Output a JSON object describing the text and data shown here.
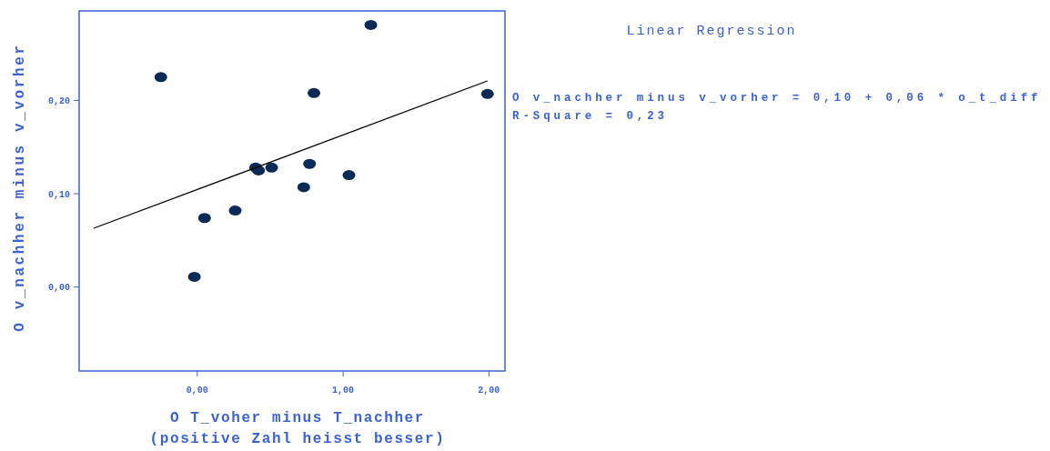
{
  "chart_data": {
    "type": "scatter",
    "title": "Linear Regression",
    "xlabel": "O T_voher minus T_nachher\n(positive Zahl heisst besser)",
    "ylabel": "O v_nachher minus v_vorher",
    "annotations": [
      "O v_nachher minus v_vorher = 0,10 + 0,06 * o_t_diff",
      "R-Square = 0,23"
    ],
    "xlim": [
      -0.81,
      2.11
    ],
    "ylim": [
      -0.09,
      0.296
    ],
    "xticks": [
      {
        "value": 0,
        "label": "0,00"
      },
      {
        "value": 1,
        "label": "1,00"
      },
      {
        "value": 2,
        "label": "2,00"
      }
    ],
    "yticks": [
      {
        "value": 0,
        "label": "0,00"
      },
      {
        "value": 0.1,
        "label": "0,10"
      },
      {
        "value": 0.2,
        "label": "0,20"
      }
    ],
    "grid": false,
    "series": [
      {
        "marker": "circle",
        "color": "#0b2a55",
        "x": [
          -0.25,
          1.19,
          0.8,
          1.99,
          0.4,
          0.42,
          0.51,
          0.77,
          0.73,
          1.04,
          0.26,
          0.05,
          -0.02
        ],
        "values": [
          0.225,
          0.281,
          0.208,
          0.207,
          0.128,
          0.125,
          0.128,
          0.132,
          0.107,
          0.12,
          0.082,
          0.074,
          0.011
        ]
      },
      {
        "type": "line",
        "color": "#000000",
        "x": [
          -0.71,
          1.99
        ],
        "values": [
          0.063,
          0.221
        ]
      }
    ]
  }
}
